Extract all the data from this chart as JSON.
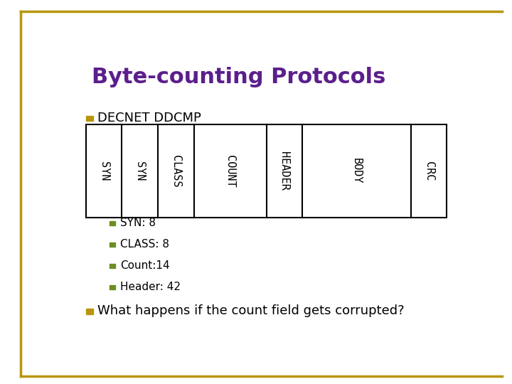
{
  "title": "Byte-counting Protocols",
  "title_color": "#5B1F8C",
  "title_fontsize": 22,
  "background_color": "#ffffff",
  "border_color": "#b8960c",
  "section_bullet_color": "#b8960c",
  "section_label": "DECNET DDCMP",
  "section_label_fontsize": 13,
  "fields": [
    "SYN",
    "SYN",
    "CLASS",
    "COUNT",
    "HEADER",
    "BODY",
    "CRC"
  ],
  "field_widths": [
    1,
    1,
    1,
    2,
    1,
    3,
    1
  ],
  "box_text_color": "#000000",
  "box_bg_color": "#ffffff",
  "box_border_color": "#000000",
  "table_field_fontsize": 11,
  "bullets": [
    "SYN: 8",
    "CLASS: 8",
    "Count:14",
    "Header: 42"
  ],
  "sub_bullet_color": "#6b8e23",
  "bullet_fontsize": 11,
  "main_bullet": "What happens if the count field gets corrupted?",
  "main_bullet_fontsize": 13,
  "main_bullet_color": "#b8960c"
}
